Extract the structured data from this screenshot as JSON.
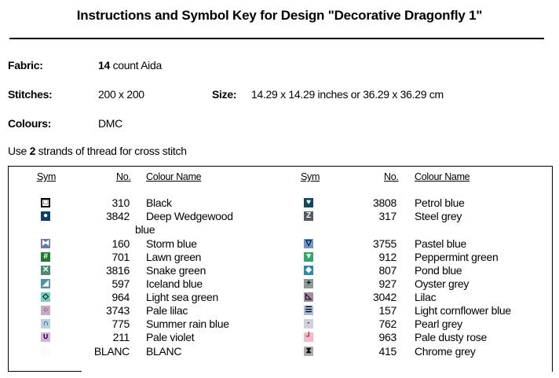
{
  "title": "Instructions and Symbol Key for Design \"Decorative Dragonfly 1\"",
  "fabric": {
    "label": "Fabric:",
    "count": "14",
    "rest": " count Aida"
  },
  "stitches": {
    "label": "Stitches:",
    "value": "200 x 200",
    "size_label": "Size:",
    "size_value": "14.29 x 14.29 inches or 36.29 x 36.29 cm"
  },
  "colours": {
    "label": "Colours:",
    "value": "DMC"
  },
  "strands": {
    "pre": "Use ",
    "num": "2",
    "post": " strands of thread for cross stitch"
  },
  "headers": {
    "sym": "Sym",
    "no": "No.",
    "name": "Colour Name"
  },
  "left": [
    {
      "no": "310",
      "name": "Black",
      "bg": "#ffffff",
      "fg": "#000",
      "glyph": "□",
      "border": "#000"
    },
    {
      "no": "3842",
      "name": "Deep Wedgewood",
      "wrap": "blue",
      "bg": "#0c3f6b",
      "fg": "#fff",
      "glyph": "●"
    },
    {
      "no": "160",
      "name": "Storm blue",
      "bg": "#6a7aa8",
      "fg": "#fff",
      "glyph": "⧓"
    },
    {
      "no": "701",
      "name": "Lawn green",
      "bg": "#1d7a32",
      "fg": "#fff",
      "glyph": "#"
    },
    {
      "no": "3816",
      "name": "Snake green",
      "bg": "#4a8a6e",
      "fg": "#fff",
      "glyph": "✕"
    },
    {
      "no": "597",
      "name": "Iceland blue",
      "bg": "#4f92a8",
      "fg": "#fff",
      "glyph": "◢"
    },
    {
      "no": "964",
      "name": "Light sea green",
      "bg": "#6fd0c0",
      "fg": "#000",
      "glyph": "◇"
    },
    {
      "no": "3743",
      "name": "Pale lilac",
      "bg": "#c8a8c4",
      "fg": "#333",
      "glyph": "○"
    },
    {
      "no": "775",
      "name": "Summer rain blue",
      "bg": "#b8d4e4",
      "fg": "#000",
      "glyph": "∩"
    },
    {
      "no": "211",
      "name": "Pale violet",
      "bg": "#d4b0e4",
      "fg": "#000",
      "glyph": "∪"
    },
    {
      "no": "BLANC",
      "name": "BLANC",
      "bg": "#fafafa",
      "fg": "#fafafa",
      "glyph": ""
    }
  ],
  "right": [
    {
      "no": "3808",
      "name": "Petrol blue",
      "bg": "#104a5a",
      "fg": "#fff",
      "glyph": "♥"
    },
    {
      "no": "317",
      "name": "Steel grey",
      "bg": "#555a66",
      "fg": "#fff",
      "glyph": "Z"
    },
    {
      "no": "3755",
      "name": "Pastel blue",
      "bg": "#6a98d0",
      "fg": "#000",
      "glyph": "▽"
    },
    {
      "no": "912",
      "name": "Peppermint green",
      "bg": "#2fa86a",
      "fg": "#fff",
      "glyph": "▼"
    },
    {
      "no": "807",
      "name": "Pond blue",
      "bg": "#2a8aa8",
      "fg": "#fff",
      "glyph": "◆"
    },
    {
      "no": "927",
      "name": "Oyster grey",
      "bg": "#8a9a98",
      "fg": "#000",
      "glyph": "+"
    },
    {
      "no": "3042",
      "name": "Lilac",
      "bg": "#a08aa0",
      "fg": "#000",
      "glyph": "◺"
    },
    {
      "no": "157",
      "name": "Light cornflower blue",
      "bg": "#a8bce0",
      "fg": "#000",
      "glyph": "☰"
    },
    {
      "no": "762",
      "name": "Pearl grey",
      "bg": "#d0d0dc",
      "fg": "#000",
      "glyph": "·"
    },
    {
      "no": "963",
      "name": "Pale dusty rose",
      "bg": "#f8b8c8",
      "fg": "#000",
      "glyph": "┘"
    },
    {
      "no": "415",
      "name": "Chrome grey",
      "bg": "#a8aab0",
      "fg": "#000",
      "glyph": "⧗"
    }
  ]
}
